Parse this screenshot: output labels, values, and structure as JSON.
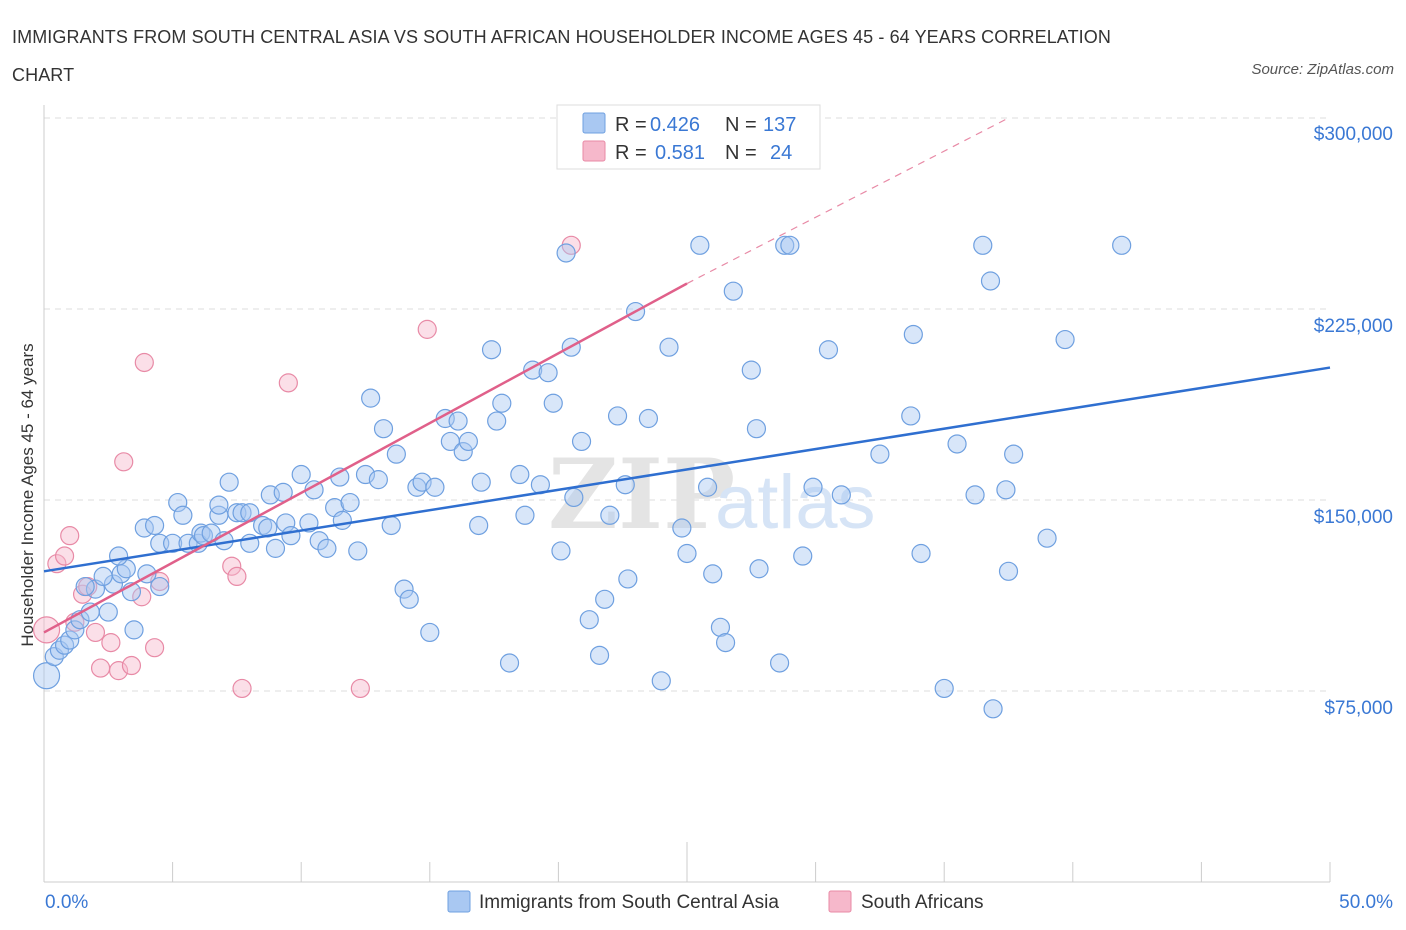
{
  "title": "IMMIGRANTS FROM SOUTH CENTRAL ASIA VS SOUTH AFRICAN HOUSEHOLDER INCOME AGES 45 - 64 YEARS CORRELATION CHART",
  "source": "Source: ZipAtlas.com",
  "watermark_zip": "ZIP",
  "watermark_atlas": "atlas",
  "colors": {
    "blue_fill": "#a9c8f2",
    "blue_stroke": "#6fa0e0",
    "blue_line": "#2f6fd0",
    "pink_fill": "#f6b8cb",
    "pink_stroke": "#e88aa6",
    "pink_line": "#e0608a",
    "grid": "#dddddd",
    "tick_text": "#3a78d4"
  },
  "legend": {
    "r_label": "R =",
    "n_label": "N =",
    "rows": [
      {
        "r": "0.426",
        "n": "137"
      },
      {
        "r": "0.581",
        "n": "24"
      }
    ]
  },
  "chart_data": {
    "type": "scatter",
    "title": "IMMIGRANTS FROM SOUTH CENTRAL ASIA VS SOUTH AFRICAN HOUSEHOLDER INCOME AGES 45 - 64 YEARS CORRELATION CHART",
    "xlabel": "",
    "ylabel": "Householder Income Ages 45 - 64 years",
    "xlim": [
      0,
      50
    ],
    "ylim": [
      0,
      300000
    ],
    "x_tick_labels": [
      "0.0%",
      "50.0%"
    ],
    "y_ticks": [
      75000,
      150000,
      225000,
      300000
    ],
    "y_tick_labels": [
      "$75,000",
      "$150,000",
      "$225,000",
      "$300,000"
    ],
    "series": [
      {
        "name": "Immigrants from South Central Asia",
        "color": "blue",
        "points": [
          [
            0.1,
            81000
          ],
          [
            0.4,
            88500
          ],
          [
            0.6,
            91000
          ],
          [
            0.8,
            93000
          ],
          [
            1.0,
            95000
          ],
          [
            1.2,
            99000
          ],
          [
            1.4,
            103000
          ],
          [
            1.8,
            106000
          ],
          [
            2.5,
            106000
          ],
          [
            2.0,
            115000
          ],
          [
            1.6,
            116000
          ],
          [
            2.7,
            117000
          ],
          [
            2.3,
            120000
          ],
          [
            3.0,
            121000
          ],
          [
            3.2,
            123000
          ],
          [
            4.0,
            121000
          ],
          [
            3.4,
            114000
          ],
          [
            3.5,
            99000
          ],
          [
            4.5,
            116000
          ],
          [
            2.9,
            128000
          ],
          [
            3.9,
            139000
          ],
          [
            4.5,
            133000
          ],
          [
            4.3,
            140000
          ],
          [
            5.0,
            133000
          ],
          [
            5.6,
            133000
          ],
          [
            5.2,
            149000
          ],
          [
            5.4,
            144000
          ],
          [
            6.0,
            133000
          ],
          [
            6.1,
            137000
          ],
          [
            6.2,
            136000
          ],
          [
            6.5,
            137000
          ],
          [
            6.8,
            144000
          ],
          [
            6.8,
            148000
          ],
          [
            7.0,
            134000
          ],
          [
            7.2,
            157000
          ],
          [
            7.5,
            145000
          ],
          [
            7.7,
            145000
          ],
          [
            8.0,
            145000
          ],
          [
            8.0,
            133000
          ],
          [
            8.5,
            140000
          ],
          [
            8.7,
            139000
          ],
          [
            8.8,
            152000
          ],
          [
            9.0,
            131000
          ],
          [
            9.3,
            153000
          ],
          [
            9.4,
            141000
          ],
          [
            9.6,
            136000
          ],
          [
            10.0,
            160000
          ],
          [
            10.3,
            141000
          ],
          [
            10.5,
            154000
          ],
          [
            10.7,
            134000
          ],
          [
            11.0,
            131000
          ],
          [
            11.3,
            147000
          ],
          [
            11.5,
            159000
          ],
          [
            11.6,
            142000
          ],
          [
            11.9,
            149000
          ],
          [
            12.2,
            130000
          ],
          [
            12.5,
            160000
          ],
          [
            12.7,
            190000
          ],
          [
            13.0,
            158000
          ],
          [
            13.2,
            178000
          ],
          [
            13.5,
            140000
          ],
          [
            13.7,
            168000
          ],
          [
            14.0,
            115000
          ],
          [
            14.2,
            111000
          ],
          [
            14.5,
            155000
          ],
          [
            14.7,
            157000
          ],
          [
            15.0,
            98000
          ],
          [
            15.2,
            155000
          ],
          [
            15.6,
            182000
          ],
          [
            15.8,
            173000
          ],
          [
            16.1,
            181000
          ],
          [
            16.3,
            169000
          ],
          [
            16.5,
            173000
          ],
          [
            16.9,
            140000
          ],
          [
            17.0,
            157000
          ],
          [
            17.4,
            209000
          ],
          [
            17.6,
            181000
          ],
          [
            17.8,
            188000
          ],
          [
            18.1,
            86000
          ],
          [
            18.5,
            160000
          ],
          [
            18.7,
            144000
          ],
          [
            19.0,
            201000
          ],
          [
            19.3,
            156000
          ],
          [
            19.6,
            200000
          ],
          [
            19.8,
            188000
          ],
          [
            20.1,
            130000
          ],
          [
            20.3,
            247000
          ],
          [
            20.5,
            210000
          ],
          [
            20.6,
            151000
          ],
          [
            20.9,
            173000
          ],
          [
            21.2,
            103000
          ],
          [
            21.6,
            89000
          ],
          [
            21.8,
            111000
          ],
          [
            22.0,
            144000
          ],
          [
            22.3,
            183000
          ],
          [
            22.6,
            156000
          ],
          [
            22.7,
            119000
          ],
          [
            23.0,
            224000
          ],
          [
            23.5,
            182000
          ],
          [
            24.0,
            79000
          ],
          [
            24.3,
            210000
          ],
          [
            24.8,
            139000
          ],
          [
            25.0,
            129000
          ],
          [
            25.5,
            250000
          ],
          [
            25.8,
            155000
          ],
          [
            26.0,
            121000
          ],
          [
            26.3,
            100000
          ],
          [
            26.5,
            94000
          ],
          [
            26.8,
            232000
          ],
          [
            27.5,
            201000
          ],
          [
            27.7,
            178000
          ],
          [
            27.8,
            123000
          ],
          [
            28.6,
            86000
          ],
          [
            28.8,
            250000
          ],
          [
            29.0,
            250000
          ],
          [
            29.5,
            128000
          ],
          [
            29.9,
            155000
          ],
          [
            30.5,
            209000
          ],
          [
            31.0,
            152000
          ],
          [
            32.5,
            168000
          ],
          [
            33.7,
            183000
          ],
          [
            33.8,
            215000
          ],
          [
            34.1,
            129000
          ],
          [
            35.0,
            76000
          ],
          [
            35.5,
            172000
          ],
          [
            36.2,
            152000
          ],
          [
            36.5,
            250000
          ],
          [
            36.8,
            236000
          ],
          [
            36.9,
            68000
          ],
          [
            37.4,
            154000
          ],
          [
            37.5,
            122000
          ],
          [
            37.7,
            168000
          ],
          [
            39.0,
            135000
          ],
          [
            39.7,
            213000
          ],
          [
            41.9,
            250000
          ]
        ],
        "trend": {
          "x": [
            0,
            50
          ],
          "y": [
            122000,
            202000
          ]
        }
      },
      {
        "name": "South Africans",
        "color": "pink",
        "points": [
          [
            0.1,
            99000
          ],
          [
            0.5,
            125000
          ],
          [
            0.8,
            128000
          ],
          [
            1.0,
            136000
          ],
          [
            1.2,
            102000
          ],
          [
            1.5,
            113000
          ],
          [
            1.7,
            116000
          ],
          [
            2.0,
            98000
          ],
          [
            2.2,
            84000
          ],
          [
            2.6,
            94000
          ],
          [
            2.9,
            83000
          ],
          [
            3.1,
            165000
          ],
          [
            3.4,
            85000
          ],
          [
            3.8,
            112000
          ],
          [
            3.9,
            204000
          ],
          [
            4.3,
            92000
          ],
          [
            4.5,
            118000
          ],
          [
            7.3,
            124000
          ],
          [
            7.5,
            120000
          ],
          [
            7.7,
            76000
          ],
          [
            9.5,
            196000
          ],
          [
            12.3,
            76000
          ],
          [
            14.9,
            217000
          ],
          [
            20.5,
            250000
          ]
        ],
        "trend": {
          "x": [
            0,
            25
          ],
          "y": [
            98000,
            235000
          ]
        },
        "trend_extension": {
          "x": [
            25,
            37.5
          ],
          "y": [
            235000,
            300000
          ]
        }
      }
    ]
  },
  "bottom_legend": {
    "items": [
      "Immigrants from South Central Asia",
      "South Africans"
    ]
  }
}
